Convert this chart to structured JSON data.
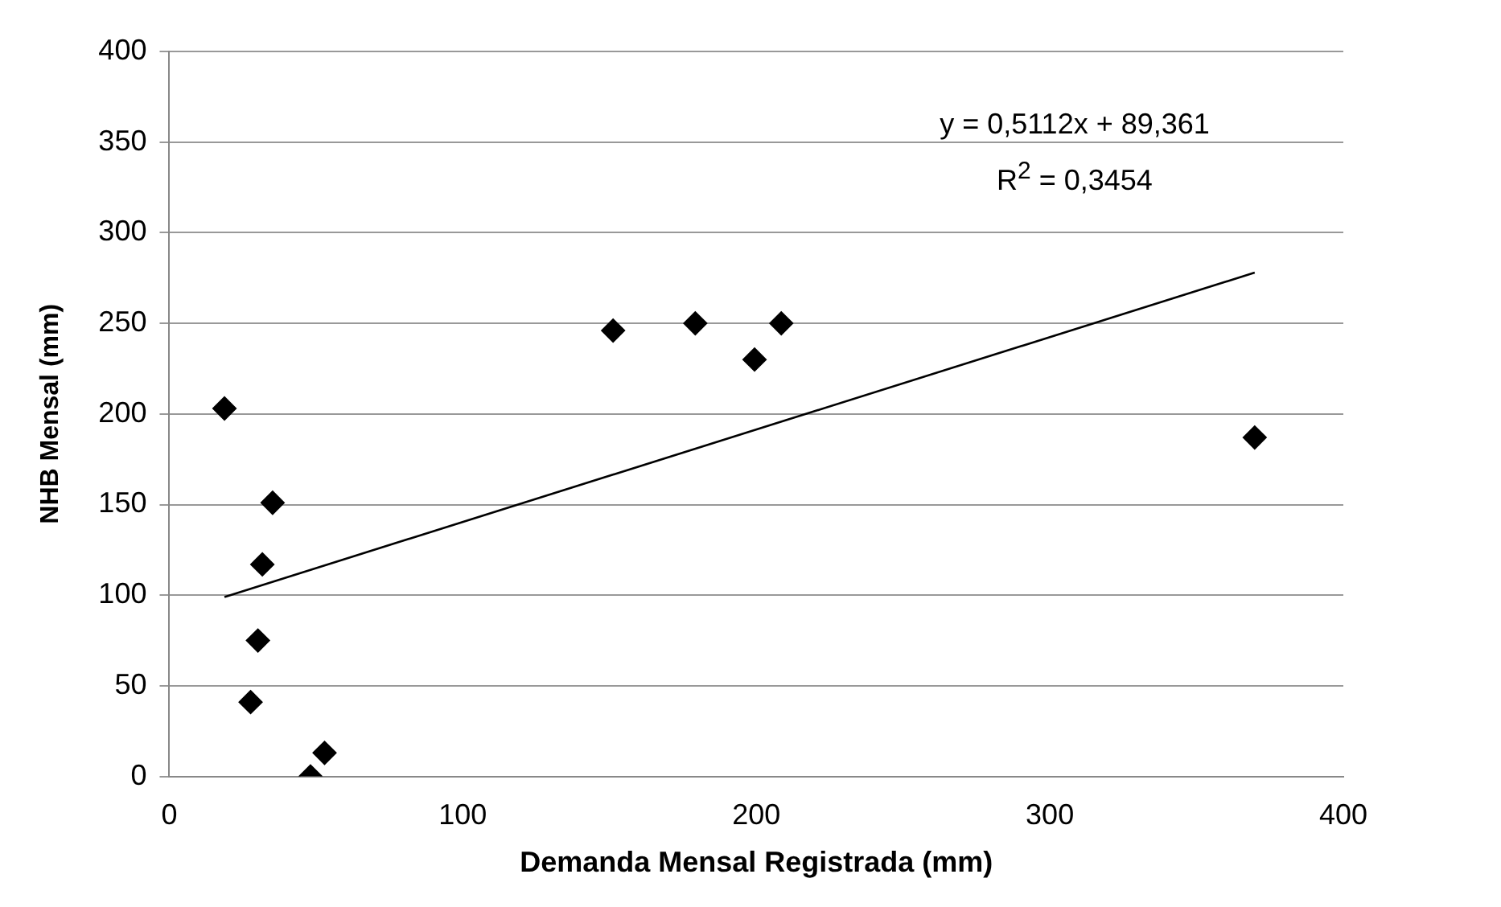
{
  "chart_data": {
    "type": "scatter",
    "xlabel": "Demanda Mensal Registrada (mm)",
    "ylabel": "NHB Mensal (mm)",
    "xlim": [
      0,
      400
    ],
    "xticks": [
      0,
      100,
      200,
      300,
      400
    ],
    "ylim": [
      0,
      400
    ],
    "yticks": [
      0,
      50,
      100,
      150,
      200,
      250,
      300,
      350,
      400
    ],
    "grid": "y",
    "legend": false,
    "marker": "diamond",
    "annotations": [
      "y = 0,5112x + 89,361",
      "R$^{2}$ = 0,3454"
    ],
    "series": [
      {
        "type": "scatter",
        "color": "#000000",
        "x": [
          18.8,
          35.2,
          31.7,
          30.2,
          27.7,
          52.9,
          48.1,
          151.2,
          179.2,
          208.5,
          199.4,
          369.8
        ],
        "values": [
          203,
          151,
          117,
          75,
          41,
          13,
          0,
          246,
          250,
          250,
          230,
          187
        ]
      },
      {
        "type": "line",
        "color": "#000000",
        "marker": "none",
        "x": [
          18.8,
          369.8
        ],
        "values": [
          99,
          278
        ]
      }
    ]
  }
}
